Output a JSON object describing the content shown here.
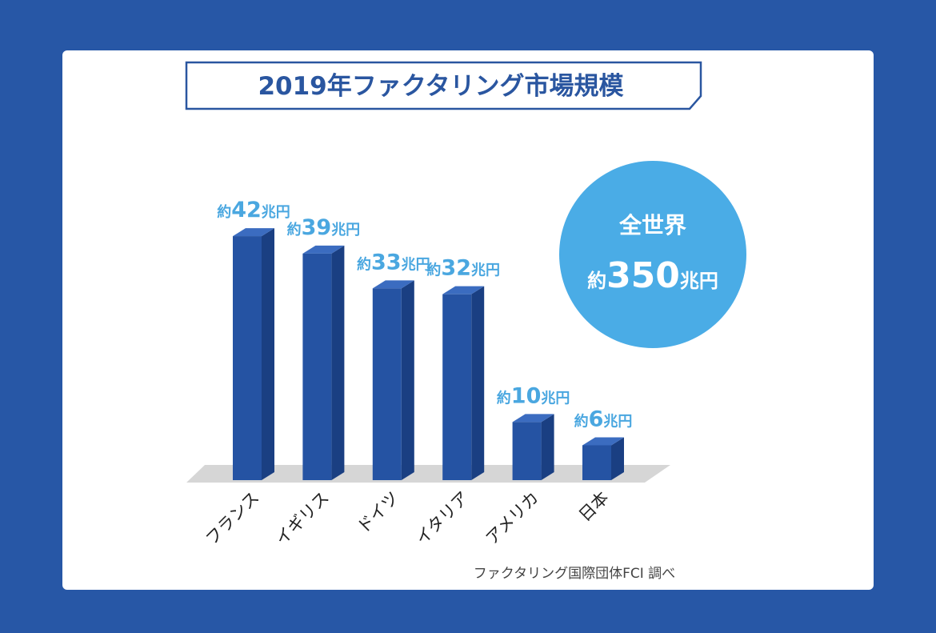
{
  "chart_data": {
    "type": "bar",
    "title": "2019年ファクタリング市場規模",
    "categories": [
      "フランス",
      "イギリス",
      "ドイツ",
      "イタリア",
      "アメリカ",
      "日本"
    ],
    "values": [
      42,
      39,
      33,
      32,
      10,
      6
    ],
    "unit": "兆円",
    "label_prefix": "約",
    "ylim": [
      0,
      45
    ],
    "xlabel": "",
    "ylabel": "",
    "grid": false,
    "source": "ファクタリング国際団体FCI 調べ",
    "total": {
      "line1": "全世界",
      "prefix": "約",
      "value": "350",
      "unit": "兆円"
    }
  },
  "colors": {
    "background": "#2757a6",
    "card": "#ffffff",
    "bar_front": "#2553a3",
    "bar_side": "#1a3f82",
    "bar_top": "#3b6cc0",
    "floor": "#d6d6d6",
    "value_label": "#4aa7e0",
    "circle": "#4aace6",
    "title": "#2a56a0"
  }
}
